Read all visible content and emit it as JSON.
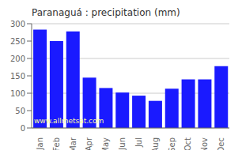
{
  "chart_data": {
    "type": "bar",
    "title": "Paranaguá : precipitation (mm)",
    "categories": [
      "Jan",
      "Feb",
      "Mar",
      "Apr",
      "May",
      "Jun",
      "Jul",
      "Aug",
      "Sep",
      "Oct",
      "Nov",
      "Dec"
    ],
    "values": [
      283,
      250,
      278,
      145,
      115,
      102,
      93,
      78,
      113,
      140,
      140,
      178
    ],
    "color": "#1a1aff",
    "ylim": [
      0,
      300
    ],
    "yticks": [
      0,
      50,
      100,
      150,
      200,
      250,
      300
    ],
    "grid": true,
    "annotations": [
      {
        "text": "www.allmetsat.com",
        "color": "#ffff99"
      }
    ]
  }
}
